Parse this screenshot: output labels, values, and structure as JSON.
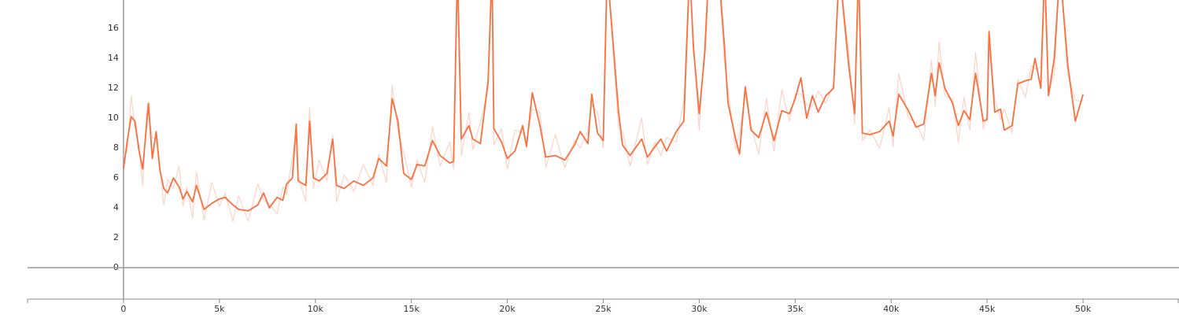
{
  "chart_data": {
    "type": "line",
    "x": [
      0,
      200,
      400,
      600,
      800,
      1000,
      1200,
      1300,
      1500,
      1700,
      1900,
      2100,
      2300,
      2600,
      2900,
      3100,
      3300,
      3600,
      3800,
      4200,
      4600,
      5000,
      5300,
      5700,
      6000,
      6500,
      7000,
      7300,
      7600,
      8000,
      8300,
      8500,
      8800,
      9000,
      9100,
      9500,
      9700,
      9900,
      10200,
      10600,
      10900,
      11100,
      11500,
      12000,
      12500,
      13000,
      13300,
      13700,
      14000,
      14300,
      14600,
      15000,
      15300,
      15700,
      16100,
      16500,
      17000,
      17200,
      17400,
      17600,
      18000,
      18200,
      18600,
      19000,
      19200,
      19300,
      19700,
      20000,
      20400,
      20800,
      21000,
      21300,
      21700,
      22000,
      22500,
      23000,
      23500,
      23800,
      24200,
      24400,
      24700,
      25000,
      25200,
      25800,
      26000,
      26400,
      27000,
      27300,
      27700,
      28000,
      28300,
      28800,
      29200,
      29500,
      29700,
      30000,
      30300,
      30500,
      31000,
      31300,
      31500,
      31900,
      32100,
      32400,
      32700,
      33100,
      33500,
      33900,
      34300,
      34700,
      35000,
      35300,
      35600,
      35900,
      36200,
      36600,
      37000,
      37300,
      37800,
      38100,
      38300,
      38500,
      38900,
      39400,
      39900,
      40100,
      40400,
      40900,
      41300,
      41700,
      42100,
      42300,
      42500,
      42800,
      43200,
      43500,
      43800,
      44100,
      44400,
      44800,
      45000,
      45100,
      45400,
      45700,
      45900,
      46300,
      46600,
      47000,
      47300,
      47500,
      47800,
      48000,
      48200,
      48500,
      48800,
      49200,
      49600,
      50000
    ],
    "series": [
      {
        "color": "#fcd3c6",
        "values": [
          7.5,
          7.8,
          11.5,
          9.3,
          8.2,
          5.5,
          10.4,
          10.3,
          8.7,
          8.6,
          6.8,
          4.2,
          5.9,
          5.3,
          6.8,
          4.1,
          5.4,
          3.3,
          6.4,
          3.2,
          5.7,
          4.1,
          5.0,
          3.1,
          4.8,
          3.1,
          5.6,
          4.5,
          4.3,
          3.6,
          5.4,
          4.9,
          7.4,
          9.1,
          6.1,
          4.4,
          10.7,
          5.3,
          7.2,
          5.8,
          8.9,
          4.4,
          6.2,
          5.1,
          6.9,
          5.5,
          7.6,
          5.7,
          12.2,
          9.1,
          7.7,
          5.4,
          7.2,
          5.7,
          9.4,
          6.8,
          8.4,
          6.6,
          20,
          7.5,
          10.4,
          7.9,
          9.7,
          12.0,
          20,
          8.2,
          9.3,
          6.6,
          9.2,
          9.0,
          8.4,
          10.6,
          10.4,
          6.7,
          8.9,
          6.7,
          8.5,
          8.0,
          9.2,
          10.9,
          10.4,
          8.0,
          20,
          9.3,
          9.1,
          6.8,
          10.0,
          6.9,
          8.4,
          7.5,
          8.7,
          8.4,
          11.2,
          20,
          15.0,
          9.2,
          15.4,
          20,
          20,
          14.0,
          11.9,
          7.9,
          9.0,
          11.6,
          9.5,
          7.6,
          11.3,
          7.8,
          11.9,
          9.8,
          11.6,
          11.6,
          10.9,
          10.8,
          11.8,
          11.0,
          12.3,
          20,
          14.3,
          9.6,
          20,
          8.5,
          9.2,
          8.0,
          10.7,
          8.1,
          13.0,
          10.0,
          9.7,
          8.5,
          13.9,
          10.8,
          15.1,
          11.5,
          11.3,
          8.4,
          11.4,
          9.2,
          14.4,
          9.3,
          10.2,
          14.7,
          11.3,
          9.9,
          10.6,
          9.0,
          12.6,
          11.4,
          13.5,
          13.3,
          13.4,
          20,
          11.8,
          12.9,
          20,
          12.9,
          11.2,
          11.1
        ]
      },
      {
        "color": "#f9703e",
        "values": [
          6.6,
          8.5,
          10.1,
          9.8,
          7.9,
          6.6,
          9.5,
          11.0,
          7.3,
          9.1,
          6.5,
          5.3,
          5.0,
          6.0,
          5.4,
          4.6,
          5.1,
          4.4,
          5.5,
          3.9,
          4.3,
          4.6,
          4.7,
          4.2,
          3.9,
          3.8,
          4.2,
          5.0,
          4.0,
          4.7,
          4.5,
          5.6,
          6.0,
          9.6,
          5.8,
          5.5,
          9.8,
          6.0,
          5.8,
          6.3,
          8.6,
          5.5,
          5.3,
          5.8,
          5.5,
          6.0,
          7.3,
          6.8,
          11.3,
          9.8,
          6.3,
          5.9,
          6.9,
          6.8,
          8.5,
          7.5,
          7.0,
          7.1,
          20,
          8.6,
          9.5,
          8.6,
          8.3,
          12.5,
          20,
          9.3,
          8.4,
          7.3,
          7.8,
          9.5,
          8.1,
          11.7,
          9.5,
          7.4,
          7.5,
          7.2,
          8.2,
          9.1,
          8.3,
          11.6,
          9.0,
          8.5,
          20,
          10.4,
          8.2,
          7.5,
          8.6,
          7.4,
          8.1,
          8.6,
          7.8,
          9.1,
          9.8,
          20,
          14.7,
          10.3,
          14.5,
          20,
          20,
          15.1,
          11.0,
          8.6,
          7.6,
          12.1,
          9.2,
          8.7,
          10.4,
          8.5,
          10.5,
          10.3,
          11.3,
          12.7,
          10.0,
          11.5,
          10.4,
          11.5,
          12.0,
          20,
          13.4,
          10.3,
          20,
          9.0,
          8.9,
          9.1,
          9.8,
          8.8,
          11.6,
          10.5,
          9.4,
          9.6,
          13.0,
          11.5,
          13.7,
          12.0,
          11.0,
          9.5,
          10.5,
          9.9,
          13.0,
          9.8,
          9.9,
          15.8,
          10.4,
          10.6,
          9.2,
          9.5,
          12.3,
          12.5,
          12.6,
          14.0,
          12.0,
          20,
          11.5,
          14.0,
          20,
          13.6,
          9.8,
          11.6
        ]
      }
    ],
    "xlim": [
      -5000,
      55000
    ],
    "ylim": [
      -2.1,
      17.9
    ],
    "xticks": [
      0,
      {
        "value": 5000,
        "label": "5k"
      },
      {
        "value": 10000,
        "label": "10k"
      },
      {
        "value": 15000,
        "label": "15k"
      },
      {
        "value": 20000,
        "label": "20k"
      },
      {
        "value": 25000,
        "label": "25k"
      },
      {
        "value": 30000,
        "label": "30k"
      },
      {
        "value": 35000,
        "label": "35k"
      },
      {
        "value": 40000,
        "label": "40k"
      },
      {
        "value": 45000,
        "label": "45k"
      },
      {
        "value": 50000,
        "label": "50k"
      }
    ],
    "yticks": [
      0,
      2,
      4,
      6,
      8,
      10,
      12,
      14,
      16
    ]
  }
}
